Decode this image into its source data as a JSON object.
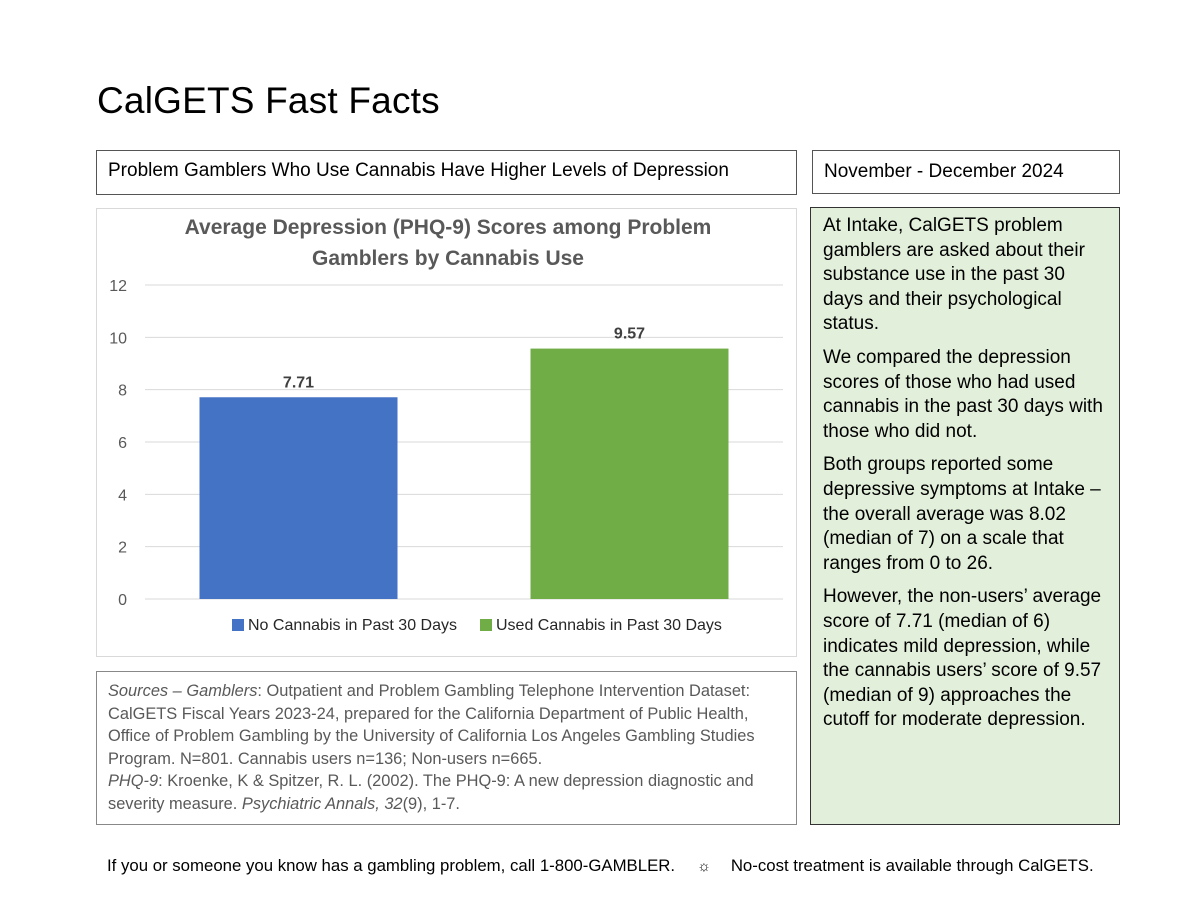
{
  "page": {
    "title": "CalGETS Fast Facts",
    "headline": "Problem Gamblers Who Use Cannabis Have Higher Levels of Depression",
    "date_range": "November - December 2024"
  },
  "sidebar": {
    "paragraphs": [
      "At Intake, CalGETS problem gamblers are asked about their substance use in the past 30 days and their psychological status.",
      "We compared the depression scores of those who had used cannabis in the past 30 days with those who did not.",
      "Both groups reported some depressive symptoms at Intake – the overall average was 8.02 (median of 7) on a scale that ranges from 0 to 26.",
      "However, the non-users’ average score of 7.71 (median of 6) indicates mild depression, while the cannabis users’ score of 9.57 (median of 9) approaches the cutoff for moderate depression."
    ]
  },
  "sources": {
    "sources_label": "Sources – Gamblers",
    "sources_text": ": Outpatient and Problem Gambling Telephone Intervention Dataset: CalGETS Fiscal Years 2023-24, prepared for the California Department of Public Health, Office of Problem Gambling by the University of California Los Angeles Gambling Studies Program. N=801. Cannabis users n=136; Non-users n=665.",
    "phq_label": "PHQ-9",
    "phq_text": ": Kroenke, K & Spitzer, R. L. (2002). The PHQ-9: A new depression diagnostic and severity measure. ",
    "journal": "Psychiatric Annals, 32",
    "journal_rest": "(9), 1-7."
  },
  "footer": {
    "left": "If you or someone you know has a gambling problem, call 1-800-GAMBLER.",
    "separator": "☼",
    "right": "No-cost treatment is available through CalGETS."
  },
  "colors": {
    "no_cannabis": "#4472c4",
    "used_cannabis": "#70ad47",
    "sidebar_bg": "#e2efda",
    "gridline": "#d9d9d9",
    "axis_text": "#595959"
  },
  "chart_data": {
    "type": "bar",
    "title_lines": [
      "Average Depression (PHQ-9) Scores among Problem",
      "Gamblers by Cannabis Use"
    ],
    "series": [
      {
        "name": "No Cannabis in Past 30 Days",
        "values": [
          7.71
        ],
        "color": "#4472c4"
      },
      {
        "name": "Used Cannabis in Past 30 Days",
        "values": [
          9.57
        ],
        "color": "#70ad47"
      }
    ],
    "data_labels": [
      "7.71",
      "9.57"
    ],
    "ylim": [
      0,
      12
    ],
    "yticks": [
      0,
      2,
      4,
      6,
      8,
      10,
      12
    ],
    "grid": true,
    "legend": "bottom"
  }
}
